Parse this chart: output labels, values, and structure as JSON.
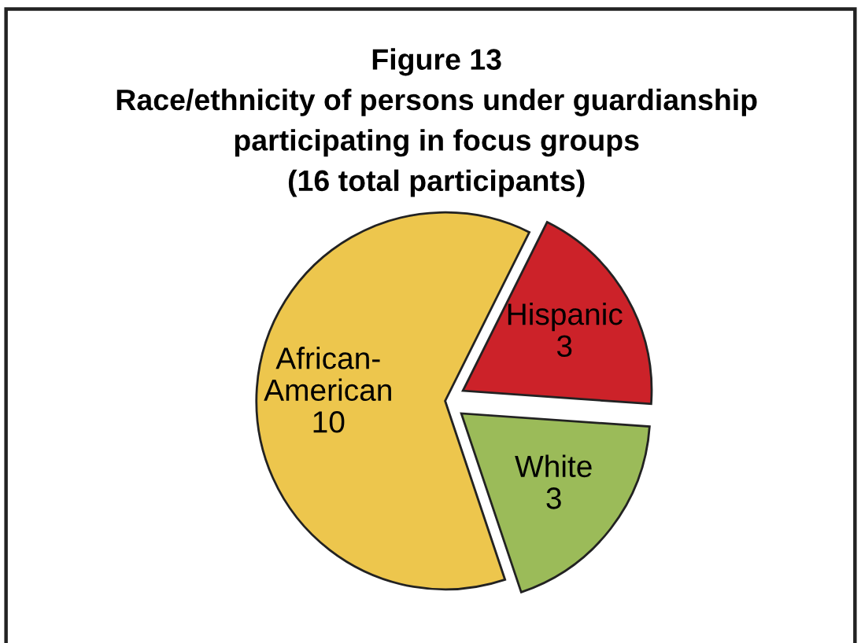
{
  "chart_data": {
    "type": "pie",
    "title": "Figure 13\nRace/ethnicity of persons under guardianship\nparticipating in focus groups\n(16 total participants)",
    "categories": [
      "African-American",
      "Hispanic",
      "White"
    ],
    "values": [
      10,
      3,
      3
    ],
    "colors": [
      "#edc64d",
      "#cc2229",
      "#9bbb59"
    ],
    "data_labels": true,
    "legend": false
  }
}
